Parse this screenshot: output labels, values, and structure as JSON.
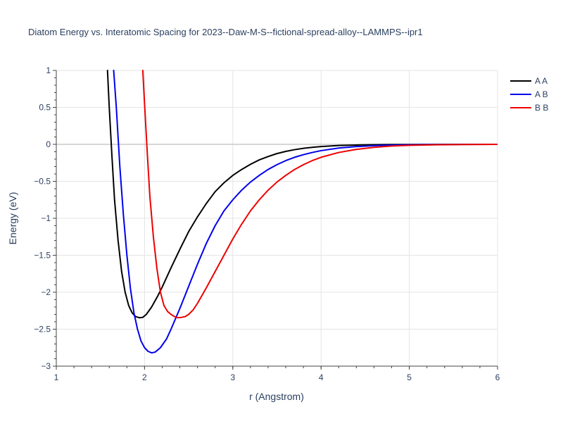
{
  "chart_data": {
    "type": "line",
    "title": "Diatom Energy vs. Interatomic Spacing for 2023--Daw-M-S--fictional-spread-alloy--LAMMPS--ipr1",
    "xlabel": "r (Angstrom)",
    "ylabel": "Energy (eV)",
    "xlim": [
      1,
      6
    ],
    "ylim": [
      -3,
      1
    ],
    "xticks": [
      1,
      2,
      3,
      4,
      5,
      6
    ],
    "yticks": [
      -3,
      -2.5,
      -2,
      -1.5,
      -1,
      -0.5,
      0,
      0.5,
      1
    ],
    "xtick_labels": [
      "1",
      "2",
      "3",
      "4",
      "5",
      "6"
    ],
    "ytick_labels": [
      "−3",
      "−2.5",
      "−2",
      "−1.5",
      "−1",
      "−0.5",
      "0",
      "0.5",
      "1"
    ],
    "grid": true,
    "legend_position": "top-right",
    "series": [
      {
        "name": "A A",
        "color": "#000000",
        "x": [
          1.58,
          1.6,
          1.63,
          1.66,
          1.7,
          1.74,
          1.78,
          1.82,
          1.86,
          1.9,
          1.94,
          1.98,
          2.02,
          2.08,
          2.15,
          2.2,
          2.3,
          2.4,
          2.5,
          2.6,
          2.7,
          2.8,
          2.9,
          3.0,
          3.1,
          3.2,
          3.3,
          3.4,
          3.5,
          3.6,
          3.7,
          3.8,
          3.9,
          4.0,
          4.2,
          4.4,
          4.6,
          4.8,
          5.0,
          5.3,
          5.6,
          6.0
        ],
        "values": [
          1.0,
          0.5,
          -0.15,
          -0.75,
          -1.3,
          -1.72,
          -2.0,
          -2.18,
          -2.28,
          -2.33,
          -2.345,
          -2.34,
          -2.3,
          -2.2,
          -2.05,
          -1.93,
          -1.67,
          -1.42,
          -1.18,
          -0.98,
          -0.8,
          -0.64,
          -0.52,
          -0.42,
          -0.34,
          -0.27,
          -0.21,
          -0.165,
          -0.125,
          -0.095,
          -0.072,
          -0.054,
          -0.04,
          -0.03,
          -0.016,
          -0.009,
          -0.005,
          -0.003,
          -0.002,
          -0.001,
          -0.0005,
          0
        ]
      },
      {
        "name": "A B",
        "color": "#0000ee",
        "x": [
          1.65,
          1.68,
          1.72,
          1.76,
          1.8,
          1.84,
          1.88,
          1.92,
          1.96,
          2.0,
          2.04,
          2.08,
          2.12,
          2.18,
          2.25,
          2.3,
          2.4,
          2.5,
          2.6,
          2.7,
          2.8,
          2.9,
          3.0,
          3.1,
          3.2,
          3.3,
          3.4,
          3.5,
          3.6,
          3.7,
          3.8,
          3.9,
          4.0,
          4.2,
          4.4,
          4.6,
          4.8,
          5.0,
          5.3,
          5.6,
          6.0
        ],
        "values": [
          1.0,
          0.5,
          -0.3,
          -0.95,
          -1.5,
          -1.95,
          -2.28,
          -2.5,
          -2.66,
          -2.75,
          -2.8,
          -2.82,
          -2.81,
          -2.75,
          -2.63,
          -2.5,
          -2.22,
          -1.92,
          -1.62,
          -1.34,
          -1.1,
          -0.9,
          -0.75,
          -0.62,
          -0.51,
          -0.42,
          -0.34,
          -0.275,
          -0.22,
          -0.175,
          -0.14,
          -0.11,
          -0.085,
          -0.05,
          -0.03,
          -0.018,
          -0.01,
          -0.006,
          -0.003,
          -0.001,
          0
        ]
      },
      {
        "name": "B B",
        "color": "#ee0000",
        "x": [
          1.98,
          2.0,
          2.03,
          2.06,
          2.1,
          2.14,
          2.18,
          2.22,
          2.26,
          2.3,
          2.34,
          2.38,
          2.42,
          2.46,
          2.5,
          2.55,
          2.6,
          2.7,
          2.8,
          2.9,
          3.0,
          3.1,
          3.2,
          3.3,
          3.4,
          3.5,
          3.6,
          3.7,
          3.8,
          3.9,
          4.0,
          4.2,
          4.4,
          4.6,
          4.8,
          5.0,
          5.3,
          5.6,
          6.0
        ],
        "values": [
          1.0,
          0.55,
          -0.1,
          -0.7,
          -1.25,
          -1.68,
          -2.0,
          -2.18,
          -2.26,
          -2.3,
          -2.33,
          -2.345,
          -2.34,
          -2.33,
          -2.3,
          -2.24,
          -2.15,
          -1.94,
          -1.72,
          -1.5,
          -1.28,
          -1.08,
          -0.9,
          -0.75,
          -0.62,
          -0.51,
          -0.42,
          -0.34,
          -0.275,
          -0.22,
          -0.175,
          -0.11,
          -0.068,
          -0.04,
          -0.023,
          -0.013,
          -0.006,
          -0.002,
          0
        ]
      }
    ]
  }
}
